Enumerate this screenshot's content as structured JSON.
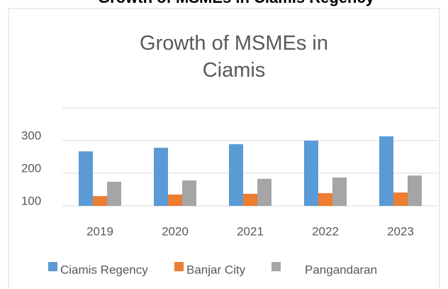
{
  "header": {
    "title": "Growth of MSMEs in Ciamis Regency"
  },
  "chart_data": {
    "type": "bar",
    "title": "Growth of MSMEs in Ciamis",
    "categories": [
      "2019",
      "2020",
      "2021",
      "2022",
      "2023"
    ],
    "series": [
      {
        "name": "Ciamis Regency",
        "color": "#5b9bd5",
        "values": [
          267,
          278,
          289,
          300,
          313
        ]
      },
      {
        "name": "Banjar City",
        "color": "#ed7d31",
        "values": [
          130,
          135,
          137,
          139,
          141
        ]
      },
      {
        "name": "Pangandaran",
        "color": "#a5a5a5",
        "values": [
          174,
          178,
          183,
          187,
          193
        ]
      }
    ],
    "ylim": [
      100,
      400
    ],
    "yticks": [
      100,
      200,
      300
    ],
    "grid": true,
    "legend": "bottom"
  }
}
